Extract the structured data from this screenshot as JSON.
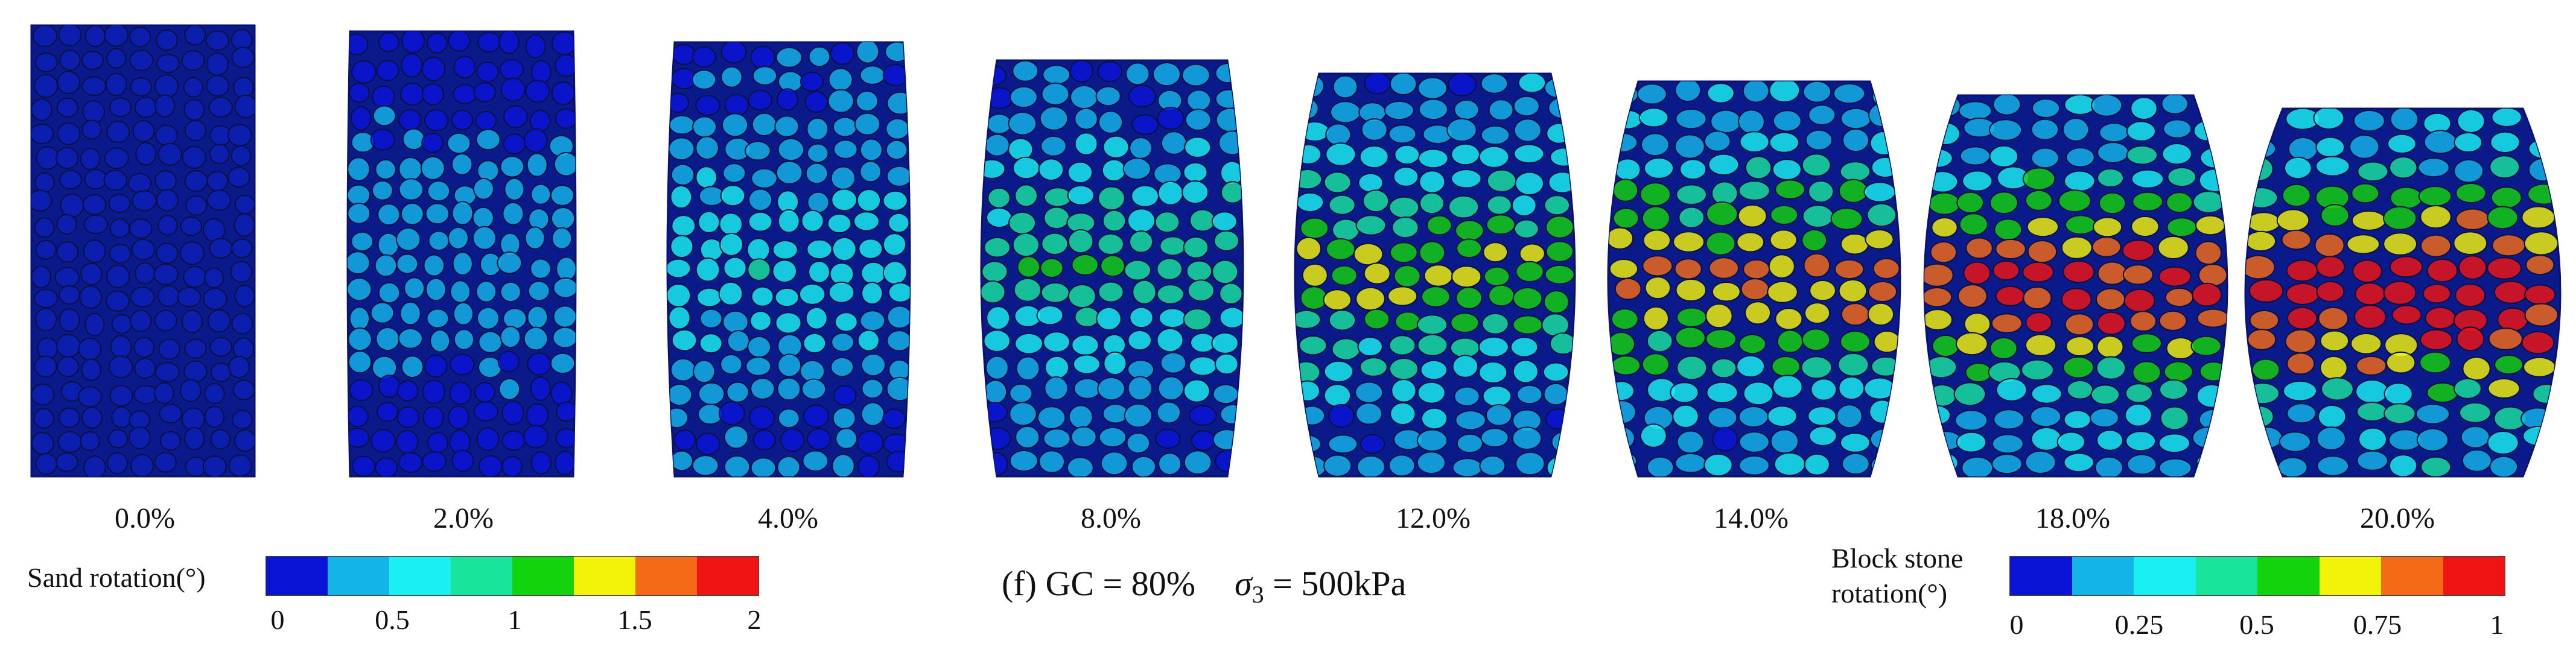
{
  "panels": [
    {
      "label": "0.0%",
      "strain_percent": 0.0
    },
    {
      "label": "2.0%",
      "strain_percent": 2.0
    },
    {
      "label": "4.0%",
      "strain_percent": 4.0
    },
    {
      "label": "8.0%",
      "strain_percent": 8.0
    },
    {
      "label": "12.0%",
      "strain_percent": 12.0
    },
    {
      "label": "14.0%",
      "strain_percent": 14.0
    },
    {
      "label": "18.0%",
      "strain_percent": 18.0
    },
    {
      "label": "20.0%",
      "strain_percent": 20.0
    }
  ],
  "sand_legend": {
    "title": "Sand rotation(°)",
    "colors": [
      "#0a14d6",
      "#13b4e8",
      "#18f0f2",
      "#19e49c",
      "#13d30d",
      "#f3f30a",
      "#f46a16",
      "#ef1313"
    ],
    "ticks": [
      "0",
      "0.5",
      "1",
      "1.5",
      "2"
    ]
  },
  "stone_legend": {
    "title_line1": "Block stone",
    "title_line2": "rotation(°)",
    "colors": [
      "#0a14d6",
      "#13b4e8",
      "#18f0f2",
      "#19e49c",
      "#13d30d",
      "#f3f30a",
      "#f46a16",
      "#ef1313"
    ],
    "ticks": [
      "0",
      "0.25",
      "0.5",
      "0.75",
      "1"
    ]
  },
  "caption": {
    "prefix": "(f) GC = 80%",
    "sigma": "σ",
    "sub": "3",
    "suffix": " = 500kPa"
  }
}
